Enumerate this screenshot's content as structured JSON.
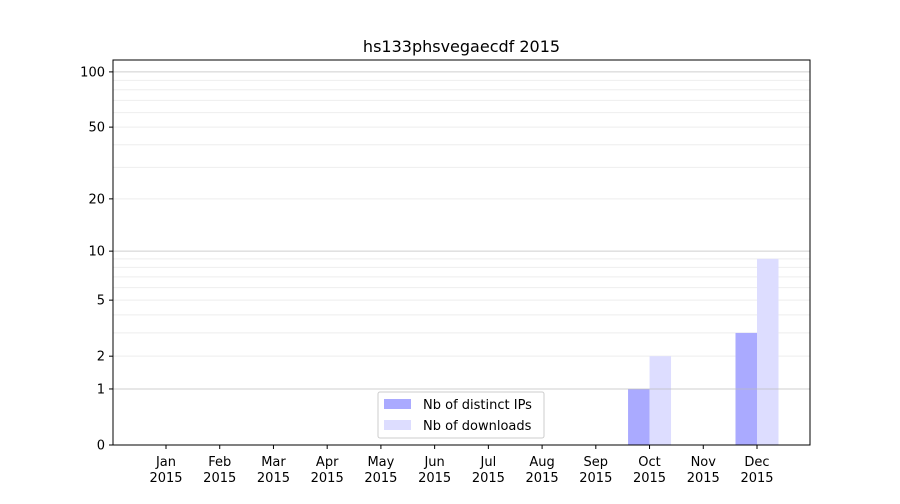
{
  "chart_data": {
    "type": "bar",
    "title": "hs133phsvegaecdf 2015",
    "xlabel": "",
    "ylabel": "",
    "yscale": "log10(y+1)",
    "ylim": [
      0,
      116
    ],
    "grid": true,
    "legend_position": "bottom-center",
    "categories": [
      "Jan\n2015",
      "Feb\n2015",
      "Mar\n2015",
      "Apr\n2015",
      "May\n2015",
      "Jun\n2015",
      "Jul\n2015",
      "Aug\n2015",
      "Sep\n2015",
      "Oct\n2015",
      "Nov\n2015",
      "Dec\n2015"
    ],
    "yticks": [
      0,
      1,
      2,
      5,
      10,
      20,
      50,
      100
    ],
    "series": [
      {
        "name": "Nb of distinct IPs",
        "color": "#aaaaff",
        "values": [
          0,
          0,
          0,
          0,
          0,
          0,
          0,
          0,
          0,
          1,
          0,
          3
        ]
      },
      {
        "name": "Nb of downloads",
        "color": "#ddddff",
        "values": [
          0,
          0,
          0,
          0,
          0,
          0,
          0,
          0,
          0,
          2,
          0,
          9
        ]
      }
    ]
  }
}
